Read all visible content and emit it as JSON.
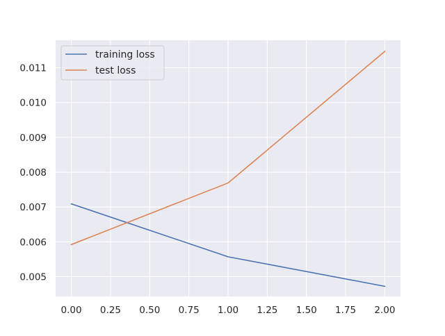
{
  "chart_data": {
    "type": "line",
    "title": "",
    "xlabel": "",
    "ylabel": "",
    "x": [
      0,
      1,
      2
    ],
    "xlim": [
      -0.1,
      2.1
    ],
    "ylim": [
      0.00443,
      0.01179
    ],
    "xticks": [
      0.0,
      0.25,
      0.5,
      0.75,
      1.0,
      1.25,
      1.5,
      1.75,
      2.0
    ],
    "xtick_labels": [
      "0.00",
      "0.25",
      "0.50",
      "0.75",
      "1.00",
      "1.25",
      "1.50",
      "1.75",
      "2.00"
    ],
    "yticks": [
      0.005,
      0.006,
      0.007,
      0.008,
      0.009,
      0.01,
      0.011
    ],
    "ytick_labels": [
      "0.005",
      "0.006",
      "0.007",
      "0.008",
      "0.009",
      "0.010",
      "0.011"
    ],
    "grid": true,
    "legend_position": "top-left",
    "series": [
      {
        "name": "training loss",
        "color": "#4c72b0",
        "values": [
          0.00709,
          0.00557,
          0.00472
        ]
      },
      {
        "name": "test loss",
        "color": "#dd8452",
        "values": [
          0.00592,
          0.00769,
          0.01147
        ]
      }
    ]
  },
  "colors": {
    "plot_background": "#eaeaf2",
    "grid": "#ffffff",
    "tick_text": "#262626",
    "legend_background": "#eaeaf2",
    "legend_border": "#cccccc"
  }
}
